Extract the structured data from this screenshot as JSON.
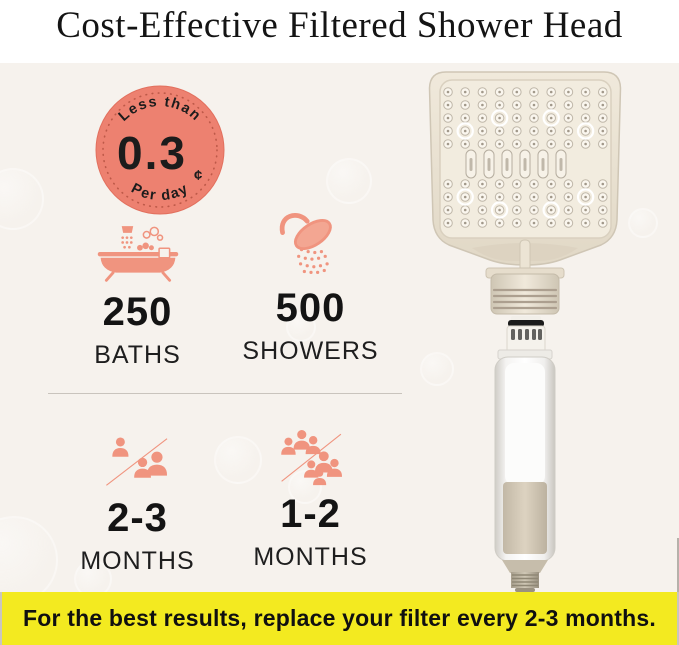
{
  "title": "Cost-Effective Filtered Shower Head",
  "badge": {
    "top_text": "Less than",
    "value": "0.3",
    "unit": "¢",
    "bottom_text": "Per day"
  },
  "stats": [
    {
      "value": "250",
      "label": "BATHS"
    },
    {
      "value": "500",
      "label": "SHOWERS"
    },
    {
      "value": "2-3",
      "label": "MONTHS"
    },
    {
      "value": "1-2",
      "label": "MONTHS"
    }
  ],
  "banner": {
    "text": "For the best results, replace your filter every 2-3 months."
  },
  "colors": {
    "accent": "#ed8170",
    "accent_light": "#f0947f",
    "yellow": "#f3ea20",
    "cream": "#f6f2ed"
  }
}
